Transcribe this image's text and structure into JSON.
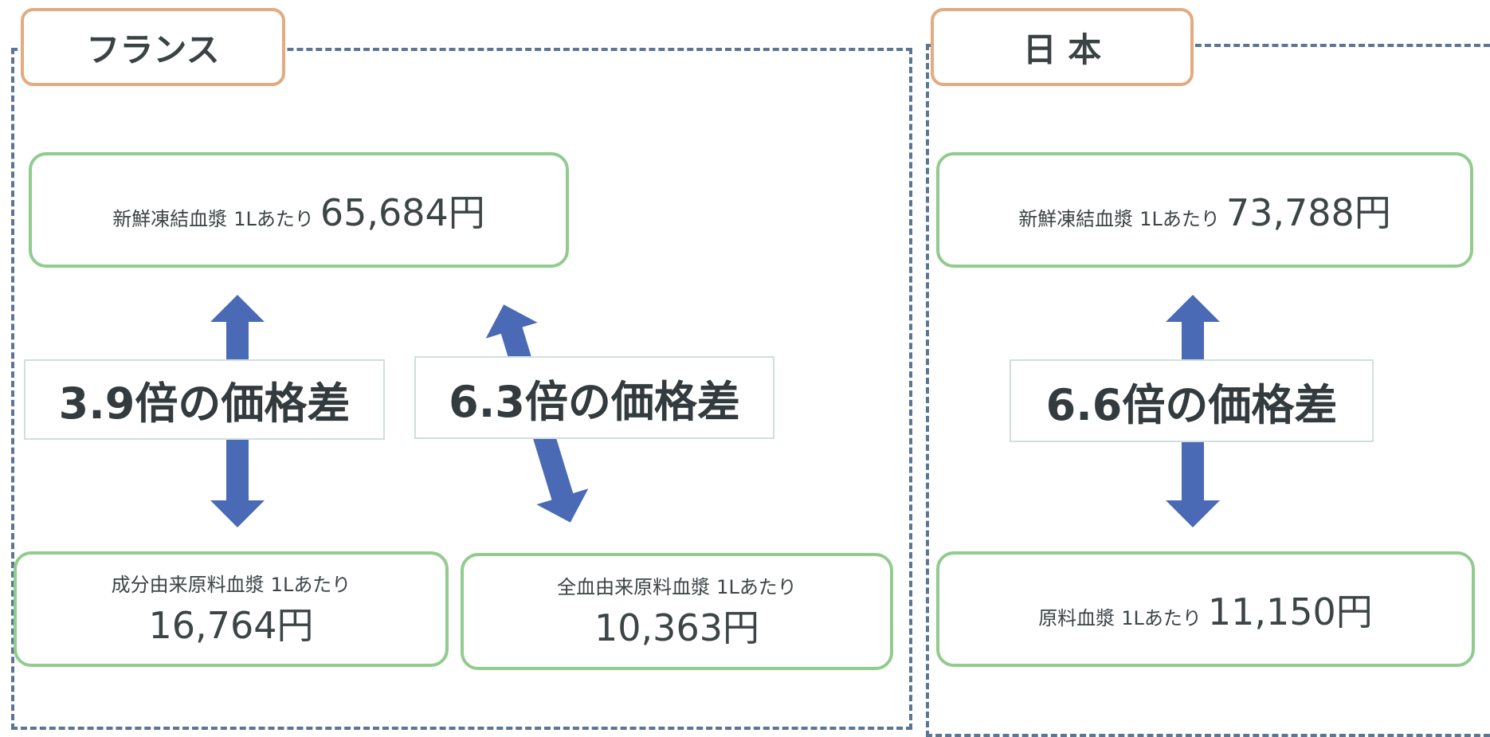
{
  "france": {
    "title": "フランス",
    "top": {
      "name": "新鮮凍結血漿",
      "unit": "1Lあたり",
      "price": "65,684円"
    },
    "bottom": [
      {
        "name": "成分由来原料血漿",
        "unit": "1Lあたり",
        "price": "16,764円"
      },
      {
        "name": "全血由来原料血漿",
        "unit": "1Lあたり",
        "price": "10,363円"
      }
    ],
    "ratios": [
      "3.9倍の価格差",
      "6.3倍の価格差"
    ]
  },
  "japan": {
    "title": "日 本",
    "top": {
      "name": "新鮮凍結血漿",
      "unit": "1Lあたり",
      "price": "73,788円"
    },
    "bottom": {
      "name": "原料血漿",
      "unit": "1Lあたり",
      "price": "11,150円"
    },
    "ratio": "6.6倍の価格差"
  }
}
